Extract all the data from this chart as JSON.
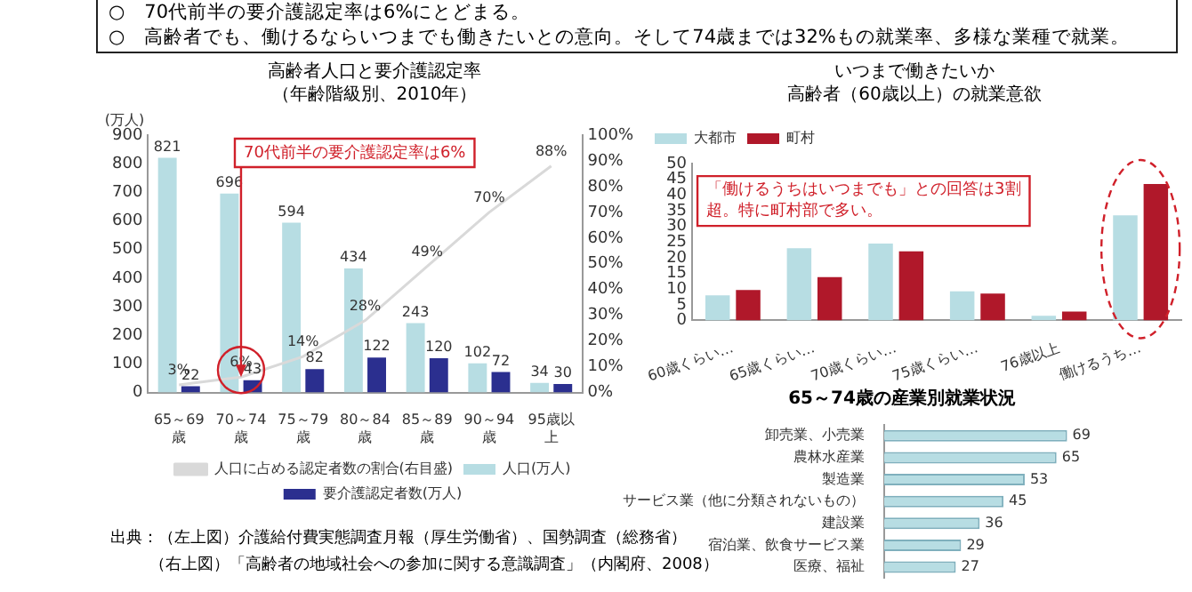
{
  "chart_data": [
    {
      "type": "bar",
      "title": "高齢者人口と要介護認定率",
      "subtitle": "（年齢階級別、2010年）",
      "ylabel": "(万人)",
      "categories": [
        "65～69歳",
        "70～74歳",
        "75～79歳",
        "80～84歳",
        "85～89歳",
        "90～94歳",
        "95歳以上"
      ],
      "series": [
        {
          "name": "人口(万人)",
          "color": "#b7dde3",
          "values": [
            821,
            696,
            594,
            434,
            243,
            102,
            34
          ]
        },
        {
          "name": "要介護認定者数(万人)",
          "color": "#2b2f8f",
          "values": [
            22,
            43,
            82,
            122,
            120,
            72,
            30
          ]
        },
        {
          "name": "人口に占める認定者数の割合(右目盛)",
          "type": "line",
          "axis": "y2",
          "color": "#d9d9d9",
          "values": [
            3,
            6,
            14,
            28,
            49,
            70,
            88
          ],
          "value_labels": [
            "3%",
            "6%",
            "14%",
            "28%",
            "49%",
            "70%",
            "88%"
          ]
        }
      ],
      "ylim": [
        0,
        900
      ],
      "yticks": [
        0,
        100,
        200,
        300,
        400,
        500,
        600,
        700,
        800,
        900
      ],
      "y2lim": [
        0,
        100
      ],
      "y2ticks": [
        {
          "value": 0,
          "label": "0%"
        },
        {
          "value": 10,
          "label": "10%"
        },
        {
          "value": 20,
          "label": "20%"
        },
        {
          "value": 30,
          "label": "30%"
        },
        {
          "value": 40,
          "label": "40%"
        },
        {
          "value": 50,
          "label": "50%"
        },
        {
          "value": 60,
          "label": "60%"
        },
        {
          "value": 70,
          "label": "70%"
        },
        {
          "value": 80,
          "label": "80%"
        },
        {
          "value": 90,
          "label": "90%"
        },
        {
          "value": 100,
          "label": "100%"
        }
      ],
      "data_labels": true,
      "marker": "none",
      "grid": false,
      "legend": "bottom",
      "annotations": [
        "○　70代前半の要介護認定率は6%にとどまる。",
        "○　高齢者でも、働けるならいつまでも働きたいとの意向。そして74歳までは32%もの就業率、多様な業種で就業。",
        {
          "text": "70代前半の要介護認定率は6%",
          "x": "70～74歳",
          "y": 54
        },
        "出典：（左上図）介護給付費実態調査月報（厚生労働省）、国勢調査（総務省）",
        "（右上図）「高齢者の地域社会への参加に関する意識調査」（内閣府、2008）"
      ]
    },
    {
      "type": "bar",
      "title": "いつまで働きたいか",
      "subtitle": "高齢者（60歳以上）の就業意欲",
      "categories": [
        "60歳くらい…",
        "65歳くらい…",
        "70歳くらい…",
        "75歳くらい…",
        "76歳以上",
        "働けるうち…"
      ],
      "series": [
        {
          "name": "大都市",
          "color": "#b7dde3",
          "values": [
            8,
            23,
            24.5,
            9.3,
            1.5,
            33.5
          ]
        },
        {
          "name": "町村",
          "color": "#b0182a",
          "values": [
            9.7,
            13.8,
            22,
            8.6,
            2.8,
            43.5
          ]
        }
      ],
      "ylim": [
        0,
        50
      ],
      "yticks": [
        0,
        5,
        10,
        15,
        20,
        25,
        30,
        35,
        40,
        45,
        50
      ],
      "grid": false,
      "legend": "top left",
      "annotations": [
        "「働けるうちはいつまでも」との回答は3割超。特に町村部で多い。"
      ]
    },
    {
      "type": "bar",
      "orientation": "horizontal",
      "title": "65～74歳の産業別就業状況",
      "categories": [
        "卸売業、小売業",
        "農林水産業",
        "製造業",
        "サービス業（他に分類されないもの）",
        "建設業",
        "宿泊業、飲食サービス業",
        "医療、福祉"
      ],
      "series": [
        {
          "color": "#b7dde3",
          "values": [
            69,
            65,
            53,
            45,
            36,
            29,
            27
          ]
        }
      ],
      "data_labels": true,
      "tick_labels": "y"
    }
  ]
}
